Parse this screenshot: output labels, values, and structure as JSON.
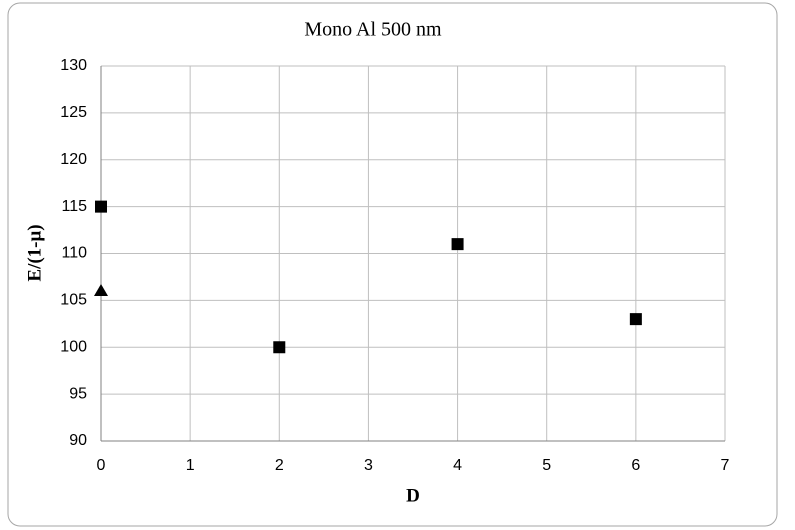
{
  "chart_data": {
    "type": "scatter",
    "title": "Mono Al 500 nm",
    "x_label": "D",
    "y_label": "E/(1-μ)",
    "series": [
      {
        "color": "#000000",
        "marker": "square",
        "x": [
          0,
          2,
          4,
          6
        ],
        "values": [
          115,
          100,
          111,
          103
        ]
      },
      {
        "color": "#000000",
        "marker": "triangle",
        "x": [
          0
        ],
        "values": [
          106
        ]
      }
    ],
    "xlim": [
      0,
      7
    ],
    "xticks": [
      0,
      1,
      2,
      3,
      4,
      5,
      6,
      7
    ],
    "ylim": [
      90,
      130
    ],
    "yticks": [
      90,
      95,
      100,
      105,
      110,
      115,
      120,
      125,
      130
    ],
    "grid": true
  }
}
